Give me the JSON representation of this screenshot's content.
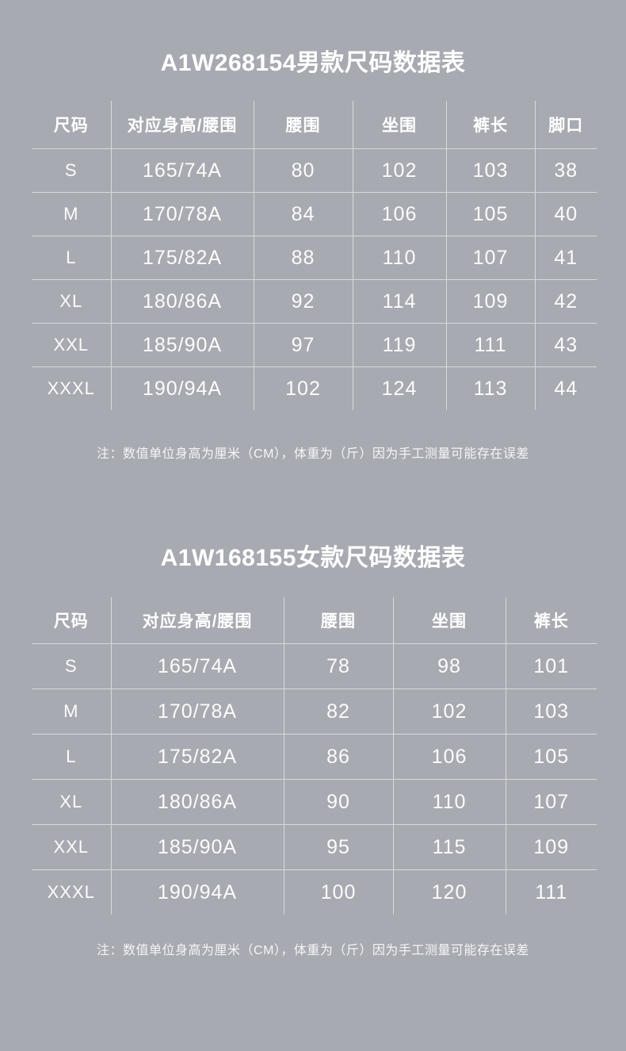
{
  "page": {
    "background": "#a7aab1",
    "grid_line_color": "rgba(255,255,255,0.55)",
    "text_color": "#ffffff"
  },
  "tables": [
    {
      "id": "men",
      "title": "A1W268154男款尺码数据表",
      "columns": [
        "尺码",
        "对应身高/腰围",
        "腰围",
        "坐围",
        "裤长",
        "脚口"
      ],
      "rows": [
        [
          "S",
          "165/74A",
          "80",
          "102",
          "103",
          "38"
        ],
        [
          "M",
          "170/78A",
          "84",
          "106",
          "105",
          "40"
        ],
        [
          "L",
          "175/82A",
          "88",
          "110",
          "107",
          "41"
        ],
        [
          "XL",
          "180/86A",
          "92",
          "114",
          "109",
          "42"
        ],
        [
          "XXL",
          "185/90A",
          "97",
          "119",
          "111",
          "43"
        ],
        [
          "XXXL",
          "190/94A",
          "102",
          "124",
          "113",
          "44"
        ]
      ],
      "note": "注：数值单位身高为厘米（CM），体重为（斤）因为手工测量可能存在误差"
    },
    {
      "id": "women",
      "title": "A1W168155女款尺码数据表",
      "columns": [
        "尺码",
        "对应身高/腰围",
        "腰围",
        "坐围",
        "裤长"
      ],
      "rows": [
        [
          "S",
          "165/74A",
          "78",
          "98",
          "101"
        ],
        [
          "M",
          "170/78A",
          "82",
          "102",
          "103"
        ],
        [
          "L",
          "175/82A",
          "86",
          "106",
          "105"
        ],
        [
          "XL",
          "180/86A",
          "90",
          "110",
          "107"
        ],
        [
          "XXL",
          "185/90A",
          "95",
          "115",
          "109"
        ],
        [
          "XXXL",
          "190/94A",
          "100",
          "120",
          "111"
        ]
      ],
      "note": "注：数值单位身高为厘米（CM），体重为（斤）因为手工测量可能存在误差"
    }
  ]
}
